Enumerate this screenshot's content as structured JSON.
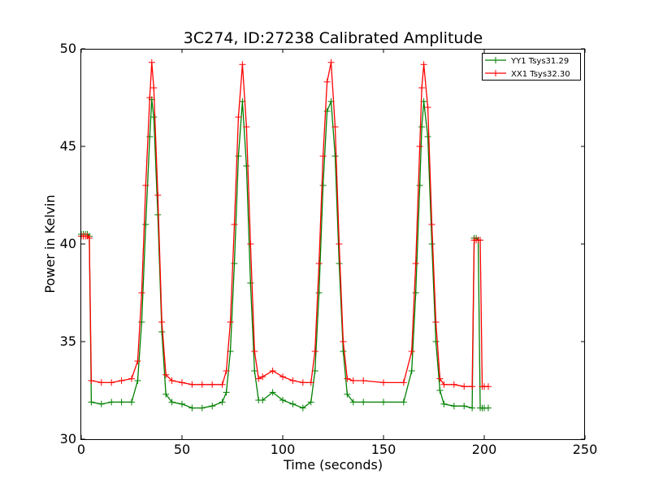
{
  "chart_data": {
    "type": "line",
    "title": "3C274, ID:27238 Calibrated Amplitude",
    "xlabel": "Time (seconds)",
    "ylabel": "Power in Kelvin",
    "xlim": [
      0,
      250
    ],
    "ylim": [
      30,
      50
    ],
    "xticks": [
      0,
      50,
      100,
      150,
      200,
      250
    ],
    "yticks": [
      30,
      35,
      40,
      45,
      50
    ],
    "grid": false,
    "legend_position": "top-right",
    "marker": "+",
    "series": [
      {
        "name": "YY1 Tsys31.29",
        "color": "#008000",
        "x": [
          0,
          1,
          2,
          3,
          4,
          5,
          10,
          15,
          20,
          25,
          28,
          30,
          32,
          34,
          35,
          36,
          38,
          40,
          42,
          45,
          50,
          55,
          60,
          65,
          70,
          72,
          74,
          76,
          78,
          80,
          82,
          84,
          86,
          88,
          90,
          95,
          100,
          105,
          110,
          114,
          116,
          118,
          120,
          122,
          124,
          126,
          128,
          130,
          132,
          135,
          140,
          150,
          160,
          164,
          166,
          168,
          169,
          170,
          172,
          174,
          176,
          178,
          180,
          185,
          190,
          194,
          195,
          196,
          197,
          198,
          199,
          200,
          202
        ],
        "values": [
          40.5,
          40.5,
          40.5,
          40.5,
          40.4,
          31.9,
          31.8,
          31.9,
          31.9,
          31.9,
          33.0,
          36.0,
          41.0,
          45.5,
          47.4,
          46.5,
          41.5,
          35.5,
          32.3,
          31.9,
          31.8,
          31.6,
          31.6,
          31.7,
          31.9,
          32.4,
          34.5,
          39.0,
          44.5,
          47.3,
          44.0,
          38.0,
          33.5,
          32.0,
          32.0,
          32.4,
          32.0,
          31.8,
          31.6,
          31.9,
          33.5,
          37.5,
          43.0,
          46.8,
          47.3,
          44.5,
          39.0,
          34.5,
          32.3,
          31.9,
          31.9,
          31.9,
          31.9,
          33.5,
          37.5,
          43.0,
          46.0,
          47.3,
          45.5,
          40.0,
          35.0,
          32.5,
          31.8,
          31.7,
          31.7,
          31.6,
          40.3,
          40.3,
          40.2,
          31.6,
          31.6,
          31.6,
          31.6
        ]
      },
      {
        "name": "XX1 Tsys32.30",
        "color": "#ff0000",
        "x": [
          0,
          1,
          2,
          3,
          4,
          5,
          10,
          15,
          20,
          25,
          28,
          30,
          32,
          34,
          35,
          36,
          38,
          40,
          42,
          45,
          50,
          55,
          60,
          65,
          70,
          72,
          74,
          76,
          78,
          80,
          82,
          84,
          86,
          88,
          90,
          95,
          100,
          105,
          110,
          114,
          116,
          118,
          120,
          122,
          124,
          126,
          128,
          130,
          132,
          135,
          140,
          150,
          160,
          164,
          166,
          168,
          169,
          170,
          172,
          174,
          176,
          178,
          180,
          185,
          190,
          194,
          195,
          196,
          197,
          198,
          199,
          200,
          202
        ],
        "values": [
          40.4,
          40.4,
          40.4,
          40.4,
          40.3,
          33.0,
          32.9,
          32.9,
          33.0,
          33.1,
          34.0,
          37.5,
          43.0,
          47.5,
          49.3,
          48.0,
          42.5,
          36.0,
          33.3,
          33.0,
          32.9,
          32.8,
          32.8,
          32.8,
          32.8,
          33.5,
          36.0,
          41.0,
          46.5,
          49.2,
          46.0,
          40.0,
          34.5,
          33.1,
          33.2,
          33.5,
          33.2,
          33.0,
          32.9,
          32.9,
          34.5,
          39.0,
          44.5,
          48.3,
          49.3,
          46.0,
          40.0,
          35.0,
          33.1,
          33.0,
          33.0,
          32.9,
          32.9,
          34.5,
          39.0,
          45.0,
          48.0,
          49.2,
          47.0,
          41.0,
          36.0,
          33.1,
          32.8,
          32.8,
          32.7,
          32.7,
          40.2,
          40.2,
          40.2,
          40.2,
          32.7,
          32.7,
          32.7
        ]
      }
    ]
  }
}
